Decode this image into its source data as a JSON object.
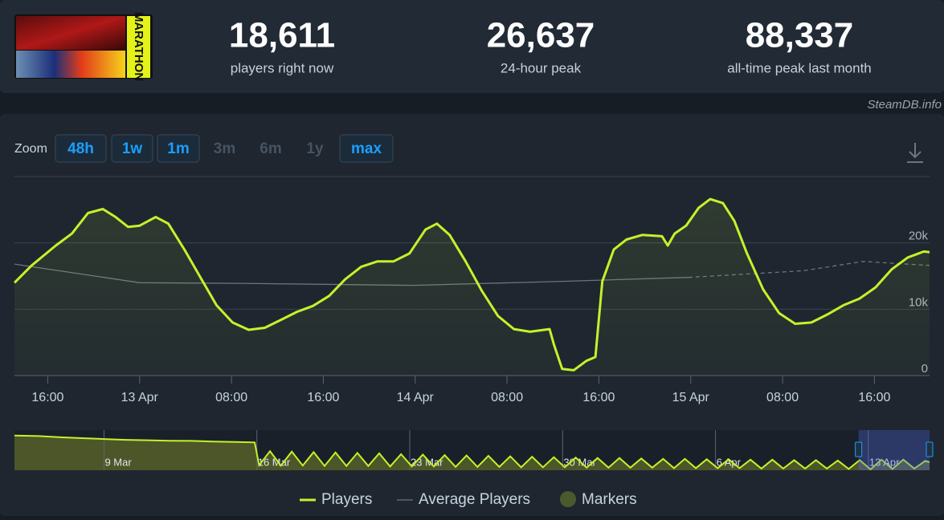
{
  "header": {
    "game_title": "MARATHON",
    "stats": [
      {
        "value": "18,611",
        "label": "players right now"
      },
      {
        "value": "26,637",
        "label": "24-hour peak"
      },
      {
        "value": "88,337",
        "label": "all-time peak last month"
      }
    ],
    "source": "SteamDB.info"
  },
  "zoom": {
    "label": "Zoom",
    "buttons": [
      {
        "label": "48h",
        "enabled": true
      },
      {
        "label": "1w",
        "enabled": true
      },
      {
        "label": "1m",
        "enabled": true
      },
      {
        "label": "3m",
        "enabled": false
      },
      {
        "label": "6m",
        "enabled": false
      },
      {
        "label": "1y",
        "enabled": false
      },
      {
        "label": "max",
        "enabled": true
      }
    ]
  },
  "chart_data": {
    "type": "line",
    "xlim": [
      13.1,
      92.8
    ],
    "xticks": [
      {
        "value": 16,
        "label": "16:00"
      },
      {
        "value": 24,
        "label": "13 Apr"
      },
      {
        "value": 32,
        "label": "08:00"
      },
      {
        "value": 40,
        "label": "16:00"
      },
      {
        "value": 48,
        "label": "14 Apr"
      },
      {
        "value": 56,
        "label": "08:00"
      },
      {
        "value": 64,
        "label": "16:00"
      },
      {
        "value": 72,
        "label": "15 Apr"
      },
      {
        "value": 80,
        "label": "08:00"
      },
      {
        "value": 88,
        "label": "16:00"
      }
    ],
    "ylim": [
      0,
      30000
    ],
    "yticks": [
      0,
      {
        "value": 10000,
        "label": "10k"
      },
      {
        "value": 20000,
        "label": "20k"
      }
    ],
    "grid": true,
    "series": [
      {
        "name": "Players",
        "color": "#c4f22b",
        "area": true,
        "x": [
          13.1,
          14.6,
          16.7,
          18.1,
          19.5,
          20.8,
          21.9,
          23.0,
          24.0,
          25.4,
          26.5,
          27.9,
          29.3,
          30.7,
          32.1,
          33.5,
          34.9,
          36.3,
          37.7,
          39.1,
          40.5,
          41.9,
          43.3,
          44.7,
          46.1,
          47.5,
          48.9,
          49.9,
          51.0,
          52.4,
          53.8,
          55.2,
          56.6,
          58.0,
          59.7,
          60.1,
          60.8,
          61.8,
          62.9,
          63.7,
          64.3,
          65.3,
          66.4,
          67.8,
          69.5,
          70.0,
          70.6,
          71.6,
          72.7,
          73.7,
          74.8,
          75.8,
          76.9,
          78.3,
          79.7,
          81.1,
          82.5,
          83.9,
          85.3,
          86.7,
          88.1,
          89.5,
          90.9,
          92.3,
          92.8
        ],
        "values": [
          14000,
          16600,
          19600,
          21400,
          24500,
          25100,
          23900,
          22400,
          22600,
          23900,
          22900,
          19000,
          14800,
          10600,
          8000,
          6900,
          7200,
          8400,
          9600,
          10500,
          12000,
          14500,
          16400,
          17200,
          17200,
          18400,
          22000,
          22900,
          21200,
          17200,
          12800,
          9000,
          7000,
          6600,
          7000,
          4600,
          1000,
          800,
          2200,
          2800,
          14200,
          19000,
          20500,
          21200,
          21000,
          19600,
          21400,
          22600,
          25300,
          26600,
          26000,
          23300,
          18400,
          13000,
          9400,
          7800,
          8000,
          9200,
          10600,
          11600,
          13300,
          16000,
          17800,
          18700,
          18600
        ]
      },
      {
        "name": "Average Players",
        "color": "#6b747e",
        "dashed_after": 71.8,
        "x": [
          13.1,
          24.0,
          32.8,
          47.8,
          60.8,
          71.8,
          81.8,
          87.0,
          92.8
        ],
        "values": [
          16800,
          14000,
          13900,
          13600,
          14200,
          14800,
          15800,
          17200,
          16600
        ]
      }
    ],
    "markers_label": "Markers",
    "markers_color": "#4a5a2f"
  },
  "navigator": {
    "type": "line",
    "color": "#c4f22b",
    "xlim": [
      4.9,
      46.8
    ],
    "ylim": [
      0,
      95000
    ],
    "xticks": [
      {
        "value": 9,
        "label": "9 Mar"
      },
      {
        "value": 16,
        "label": "16 Mar"
      },
      {
        "value": 23,
        "label": "23 Mar"
      },
      {
        "value": 30,
        "label": "30 Mar"
      },
      {
        "value": 37,
        "label": "6 Apr"
      },
      {
        "value": 44,
        "label": "13 Apr"
      }
    ],
    "selection": [
      43.55,
      46.8
    ],
    "x": [
      4.9,
      6,
      7,
      8,
      9,
      10,
      11,
      12,
      13,
      14,
      15,
      15.9,
      16.1,
      16.6,
      17.1,
      17.6,
      18.1,
      18.6,
      19.1,
      19.6,
      20.1,
      20.6,
      21.1,
      21.6,
      22.1,
      22.6,
      23.1,
      23.6,
      24.1,
      24.6,
      25.1,
      25.6,
      26.1,
      26.6,
      27.1,
      27.6,
      28.1,
      28.6,
      29.1,
      29.6,
      30.1,
      30.6,
      31.1,
      31.6,
      32.1,
      32.6,
      33.1,
      33.6,
      34.1,
      34.6,
      35.1,
      35.6,
      36.1,
      36.6,
      37.1,
      37.6,
      38.1,
      38.6,
      39.1,
      39.6,
      40.1,
      40.6,
      41.1,
      41.6,
      42.1,
      42.6,
      43.1,
      43.6,
      44.1,
      44.6,
      45.1,
      45.6,
      46.1,
      46.6,
      46.8
    ],
    "values": [
      82000,
      81000,
      78000,
      76000,
      74000,
      72000,
      71000,
      70000,
      69500,
      68000,
      67000,
      66000,
      12000,
      45000,
      11000,
      44000,
      11000,
      43000,
      10000,
      42000,
      10000,
      41000,
      10000,
      40000,
      9000,
      38000,
      9000,
      37000,
      9000,
      36000,
      8000,
      35000,
      8000,
      34000,
      8000,
      33000,
      7000,
      32000,
      7000,
      31000,
      7000,
      30000,
      6000,
      29000,
      6000,
      29000,
      6000,
      28000,
      6000,
      27000,
      5000,
      27000,
      5000,
      26000,
      5000,
      26000,
      5000,
      25000,
      4000,
      25000,
      4000,
      24000,
      4000,
      24000,
      4000,
      23000,
      3000,
      24000,
      2000,
      25000,
      3000,
      25000,
      4000,
      22000,
      19000
    ]
  }
}
